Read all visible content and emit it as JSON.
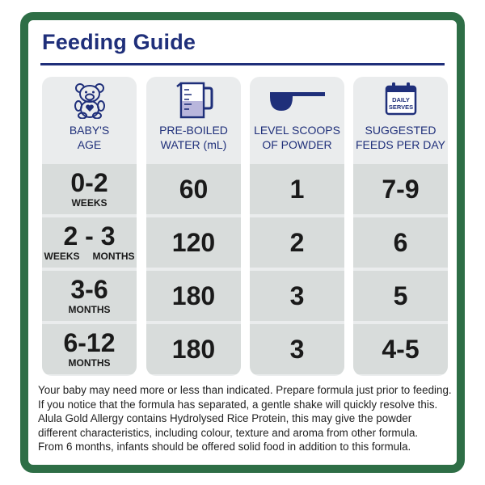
{
  "title": "Feeding Guide",
  "columns": [
    {
      "icon": "teddy-bear-icon",
      "label": "BABY'S\nAGE",
      "rows": [
        {
          "big": "0-2",
          "small": "WEEKS"
        },
        {
          "big": "2 - 3",
          "small_left": "WEEKS",
          "small_right": "MONTHS"
        },
        {
          "big": "3-6",
          "small": "MONTHS"
        },
        {
          "big": "6-12",
          "small": "MONTHS"
        }
      ]
    },
    {
      "icon": "measuring-jug-icon",
      "label": "PRE-BOILED\nWATER (mL)",
      "rows": [
        {
          "big": "60"
        },
        {
          "big": "120"
        },
        {
          "big": "180"
        },
        {
          "big": "180"
        }
      ]
    },
    {
      "icon": "scoop-icon",
      "label": "LEVEL SCOOPS\nOF POWDER",
      "rows": [
        {
          "big": "1"
        },
        {
          "big": "2"
        },
        {
          "big": "3"
        },
        {
          "big": "3"
        }
      ]
    },
    {
      "icon": "calendar-icon",
      "icon_text_1": "DAILY",
      "icon_text_2": "SERVES",
      "label": "SUGGESTED\nFEEDS PER DAY",
      "rows": [
        {
          "big": "7-9"
        },
        {
          "big": "6"
        },
        {
          "big": "5"
        },
        {
          "big": "4-5"
        }
      ]
    }
  ],
  "note_lines": [
    "Your baby may need more or less than indicated. Prepare formula just prior to feeding.",
    "If you notice that the formula has separated, a gentle shake will quickly resolve this.",
    "Alula Gold Allergy contains Hydrolysed Rice Protein, this may give the powder",
    "different characteristics, including colour, texture and aroma from other formula.",
    "From 6 months, infants should be offered solid food in addition to this formula."
  ],
  "colors": {
    "frame": "#2e6e46",
    "heading": "#1f2f7a",
    "column_bg": "#eaeced",
    "cell_bg": "#d8dcdb"
  }
}
